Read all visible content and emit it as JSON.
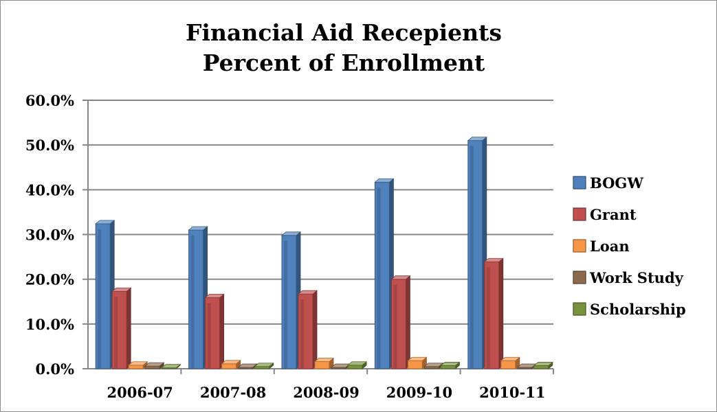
{
  "chart_data": {
    "type": "bar",
    "title": "Financial Aid Recepients",
    "subtitle": "Percent of Enrollment",
    "categories": [
      "2006-07",
      "2007-08",
      "2008-09",
      "2009-10",
      "2010-11"
    ],
    "series": [
      {
        "name": "BOGW",
        "color": "#4f81bd",
        "values": [
          32.4,
          31.0,
          29.8,
          41.7,
          51.0
        ]
      },
      {
        "name": "Grant",
        "color": "#c0504d",
        "values": [
          17.3,
          15.9,
          16.7,
          20.0,
          23.9
        ]
      },
      {
        "name": "Loan",
        "color": "#f79646",
        "values": [
          0.8,
          1.1,
          1.6,
          1.8,
          1.8
        ]
      },
      {
        "name": "Work Study",
        "color": "#8b6a4e",
        "values": [
          0.6,
          0.3,
          0.3,
          0.5,
          0.3
        ]
      },
      {
        "name": "Scholarship",
        "color": "#77933c",
        "values": [
          0.2,
          0.5,
          0.8,
          0.7,
          0.7
        ]
      }
    ],
    "y_ticks": [
      "0.0%",
      "10.0%",
      "20.0%",
      "30.0%",
      "40.0%",
      "50.0%",
      "60.0%"
    ],
    "ylim": [
      0,
      60
    ],
    "grid": true,
    "legend_position": "right"
  }
}
